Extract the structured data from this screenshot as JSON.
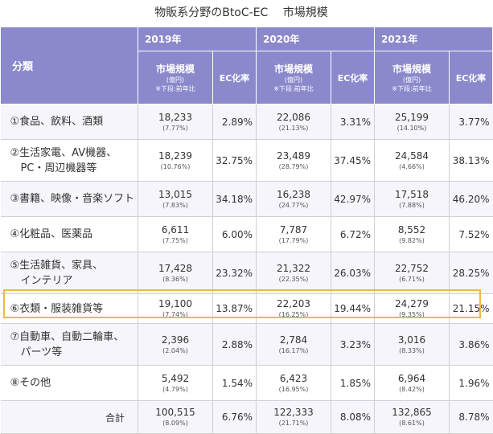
{
  "title": "物販系分野のBtoC-EC　 市場規模",
  "header": {
    "category_label": "分類",
    "years": [
      "2019年",
      "2020年",
      "2021年"
    ],
    "market_label": "市場規模",
    "market_unit": "(億円)",
    "market_note": "※下段:前年比",
    "ec_label": "EC化率"
  },
  "rows": [
    {
      "cat": [
        "①食品、飲料、酒類"
      ],
      "y2019": {
        "v": "18,233",
        "g": "(7.77%)",
        "ec": "2.89%"
      },
      "y2020": {
        "v": "22,086",
        "g": "(21.13%)",
        "ec": "3.31%"
      },
      "y2021": {
        "v": "25,199",
        "g": "(14.10%)",
        "ec": "3.77%"
      }
    },
    {
      "cat": [
        "②生活家電、AV機器、",
        "PC・周辺機器等"
      ],
      "y2019": {
        "v": "18,239",
        "g": "(10.76%)",
        "ec": "32.75%"
      },
      "y2020": {
        "v": "23,489",
        "g": "(28.79%)",
        "ec": "37.45%"
      },
      "y2021": {
        "v": "24,584",
        "g": "(4.66%)",
        "ec": "38.13%"
      }
    },
    {
      "cat": [
        "③書籍、映像・音楽ソフト"
      ],
      "y2019": {
        "v": "13,015",
        "g": "(7.83%)",
        "ec": "34.18%"
      },
      "y2020": {
        "v": "16,238",
        "g": "(24.77%)",
        "ec": "42.97%"
      },
      "y2021": {
        "v": "17,518",
        "g": "(7.88%)",
        "ec": "46.20%"
      }
    },
    {
      "cat": [
        "④化粧品、医薬品"
      ],
      "y2019": {
        "v": "6,611",
        "g": "(7.75%)",
        "ec": "6.00%"
      },
      "y2020": {
        "v": "7,787",
        "g": "(17.79%)",
        "ec": "6.72%"
      },
      "y2021": {
        "v": "8,552",
        "g": "(9.82%)",
        "ec": "7.52%"
      }
    },
    {
      "cat": [
        "⑤生活雑貨、家具、",
        "インテリア"
      ],
      "y2019": {
        "v": "17,428",
        "g": "(8.36%)",
        "ec": "23.32%"
      },
      "y2020": {
        "v": "21,322",
        "g": "(22.35%)",
        "ec": "26.03%"
      },
      "y2021": {
        "v": "22,752",
        "g": "(6.71%)",
        "ec": "28.25%"
      }
    },
    {
      "cat": [
        "⑥衣類・服装雑貨等"
      ],
      "y2019": {
        "v": "19,100",
        "g": "(7.74%)",
        "ec": "13.87%"
      },
      "y2020": {
        "v": "22,203",
        "g": "(16.25%)",
        "ec": "19.44%"
      },
      "y2021": {
        "v": "24,279",
        "g": "(9.35%)",
        "ec": "21.15%"
      }
    },
    {
      "cat": [
        "⑦自動車、自動二輪車、",
        "パーツ等"
      ],
      "y2019": {
        "v": "2,396",
        "g": "(2.04%)",
        "ec": "2.88%"
      },
      "y2020": {
        "v": "2,784",
        "g": "(16.17%)",
        "ec": "3.23%"
      },
      "y2021": {
        "v": "3,016",
        "g": "(8.33%)",
        "ec": "3.86%"
      }
    },
    {
      "cat": [
        "⑧その他"
      ],
      "y2019": {
        "v": "5,492",
        "g": "(4.79%)",
        "ec": "1.54%"
      },
      "y2020": {
        "v": "6,423",
        "g": "(16.95%)",
        "ec": "1.85%"
      },
      "y2021": {
        "v": "6,964",
        "g": "(8.42%)",
        "ec": "1.96%"
      }
    }
  ],
  "total": {
    "label": "合計",
    "y2019": {
      "v": "100,515",
      "g": "(8.09%)",
      "ec": "6.76%"
    },
    "y2020": {
      "v": "122,333",
      "g": "(21.71%)",
      "ec": "8.08%"
    },
    "y2021": {
      "v": "132,865",
      "g": "(8.61%)",
      "ec": "8.78%"
    }
  },
  "colors": {
    "header_bg": "#8b88cc",
    "highlight_border": "#f2b64a",
    "stripe": "#f5f5fb"
  }
}
